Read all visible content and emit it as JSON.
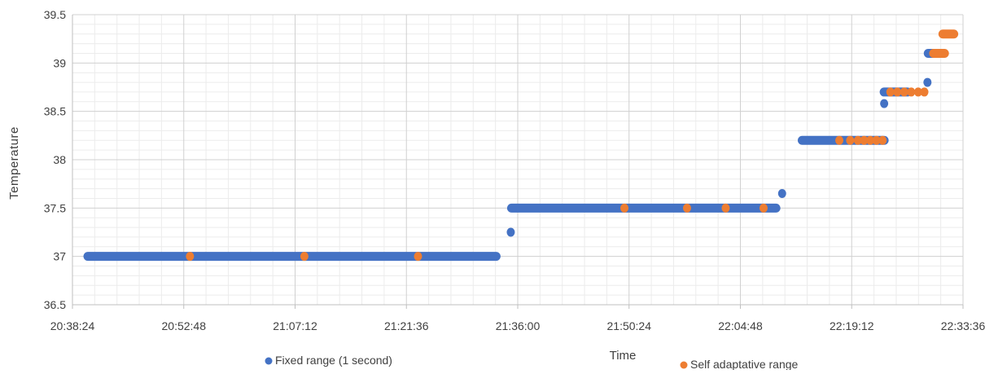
{
  "chart_data": {
    "type": "scatter",
    "ylabel": "Temperature",
    "xlabel": "Time",
    "ylim": [
      36.5,
      39.5
    ],
    "xlim": [
      "20:38:24",
      "22:33:36"
    ],
    "x_ticks": [
      "20:38:24",
      "20:52:48",
      "21:07:12",
      "21:21:36",
      "21:36:00",
      "21:50:24",
      "22:04:48",
      "22:19:12",
      "22:33:36"
    ],
    "y_ticks": [
      "36.5",
      "37",
      "37.5",
      "38",
      "38.5",
      "39",
      "39.5"
    ],
    "grid": true,
    "legend": "bottom",
    "series": [
      {
        "name": "Fixed range (1 second)",
        "color": "#4472c4",
        "segments": [
          {
            "x_start": "20:40:24",
            "x_end": "21:33:12",
            "y": 37.0
          },
          {
            "x_start": "21:35:12",
            "x_end": "22:09:24",
            "y": 37.5
          },
          {
            "x_start": "22:12:48",
            "x_end": "22:23:24",
            "y": 38.2
          },
          {
            "x_start": "22:23:24",
            "x_end": "22:26:24",
            "y": 38.7
          },
          {
            "x_start": "22:29:06",
            "x_end": "22:29:48",
            "y": 39.1
          }
        ],
        "points": [
          {
            "x": "21:35:06",
            "y": 37.25
          },
          {
            "x": "22:10:12",
            "y": 37.65
          },
          {
            "x": "22:23:24",
            "y": 38.58
          },
          {
            "x": "22:29:00",
            "y": 38.8
          }
        ]
      },
      {
        "name": "Self adaptative range",
        "color": "#ed7d31",
        "points": [
          {
            "x": "20:53:36",
            "y": 37.0
          },
          {
            "x": "21:08:24",
            "y": 37.0
          },
          {
            "x": "21:23:06",
            "y": 37.0
          },
          {
            "x": "21:49:48",
            "y": 37.5
          },
          {
            "x": "21:57:54",
            "y": 37.5
          },
          {
            "x": "22:02:54",
            "y": 37.5
          },
          {
            "x": "22:07:48",
            "y": 37.5
          },
          {
            "x": "22:17:36",
            "y": 38.2
          },
          {
            "x": "22:19:00",
            "y": 38.2
          },
          {
            "x": "22:20:00",
            "y": 38.2
          },
          {
            "x": "22:20:48",
            "y": 38.2
          },
          {
            "x": "22:21:36",
            "y": 38.2
          },
          {
            "x": "22:22:24",
            "y": 38.2
          },
          {
            "x": "22:23:12",
            "y": 38.2
          },
          {
            "x": "22:24:12",
            "y": 38.7
          },
          {
            "x": "22:25:06",
            "y": 38.7
          },
          {
            "x": "22:26:00",
            "y": 38.7
          },
          {
            "x": "22:26:54",
            "y": 38.7
          },
          {
            "x": "22:27:48",
            "y": 38.7
          },
          {
            "x": "22:28:36",
            "y": 38.7
          }
        ],
        "segments": [
          {
            "x_start": "22:29:48",
            "x_end": "22:31:12",
            "y": 39.1
          },
          {
            "x_start": "22:31:00",
            "x_end": "22:32:24",
            "y": 39.3
          }
        ]
      }
    ]
  }
}
